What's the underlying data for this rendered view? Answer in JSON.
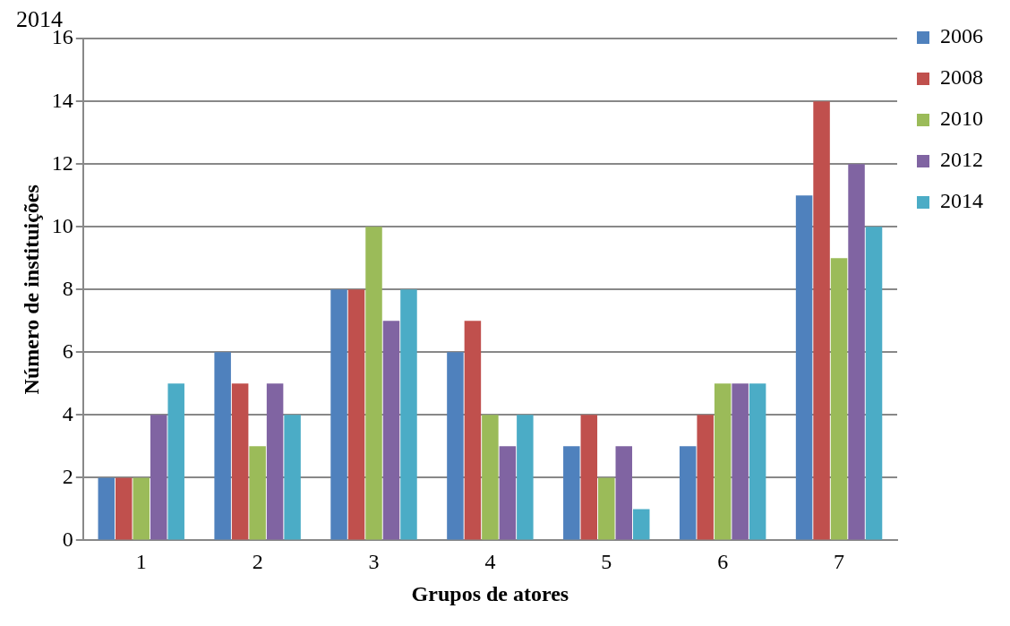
{
  "chart_data": {
    "type": "bar",
    "title": "2014",
    "xlabel": "Grupos de atores",
    "ylabel": "Número de instituições",
    "categories": [
      "1",
      "2",
      "3",
      "4",
      "5",
      "6",
      "7"
    ],
    "series": [
      {
        "name": "2006",
        "color": "#4f81bd",
        "values": [
          2,
          6,
          8,
          6,
          3,
          3,
          11
        ]
      },
      {
        "name": "2008",
        "color": "#c0504d",
        "values": [
          2,
          5,
          8,
          7,
          4,
          4,
          14
        ]
      },
      {
        "name": "2010",
        "color": "#9bbb59",
        "values": [
          2,
          3,
          10,
          4,
          2,
          5,
          9
        ]
      },
      {
        "name": "2012",
        "color": "#8064a2",
        "values": [
          4,
          5,
          7,
          3,
          3,
          5,
          12
        ]
      },
      {
        "name": "2014",
        "color": "#4bacc6",
        "values": [
          5,
          4,
          8,
          4,
          1,
          5,
          10
        ]
      }
    ],
    "ylim": [
      0,
      16
    ],
    "yticks": [
      0,
      2,
      4,
      6,
      8,
      10,
      12,
      14,
      16
    ],
    "grid": "y",
    "legend": "right"
  }
}
